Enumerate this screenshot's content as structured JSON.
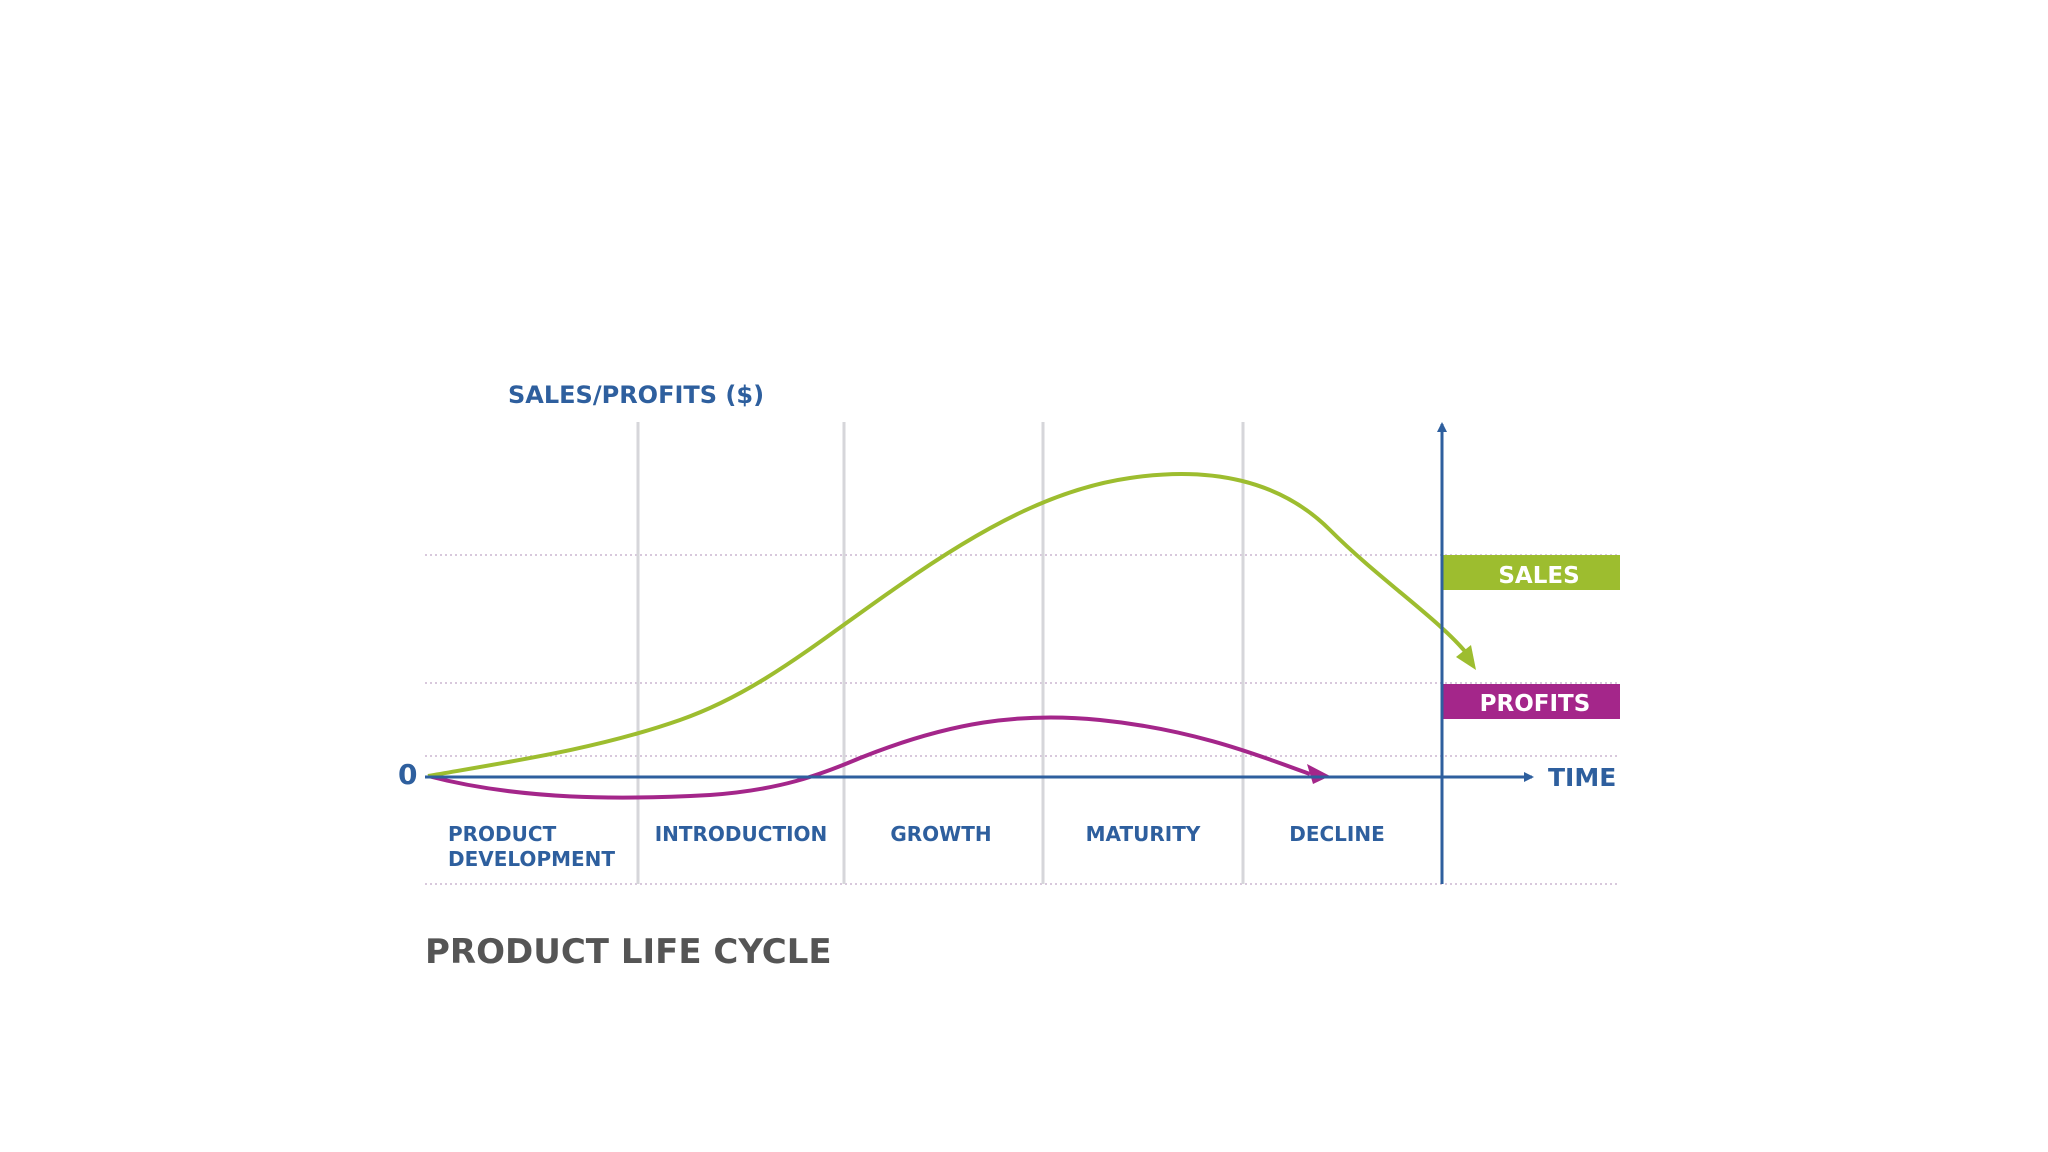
{
  "diagram": {
    "title": "PRODUCT LIFE CYCLE",
    "y_axis_label": "SALES/PROFITS ($)",
    "x_axis_label": "TIME",
    "origin_label": "0",
    "stages": [
      {
        "lines": [
          "PRODUCT",
          "DEVELOPMENT"
        ]
      },
      {
        "lines": [
          "INTRODUCTION"
        ]
      },
      {
        "lines": [
          "GROWTH"
        ]
      },
      {
        "lines": [
          "MATURITY"
        ]
      },
      {
        "lines": [
          "DECLINE"
        ]
      }
    ],
    "legend": {
      "sales": "SALES",
      "profits": "PROFITS"
    },
    "colors": {
      "axis": "#2e5f9e",
      "sales": "#9dbd2f",
      "profits": "#a4268a",
      "stage_divider": "#d6d6da",
      "gridline": "#d8c8dc",
      "title": "#555555"
    }
  }
}
